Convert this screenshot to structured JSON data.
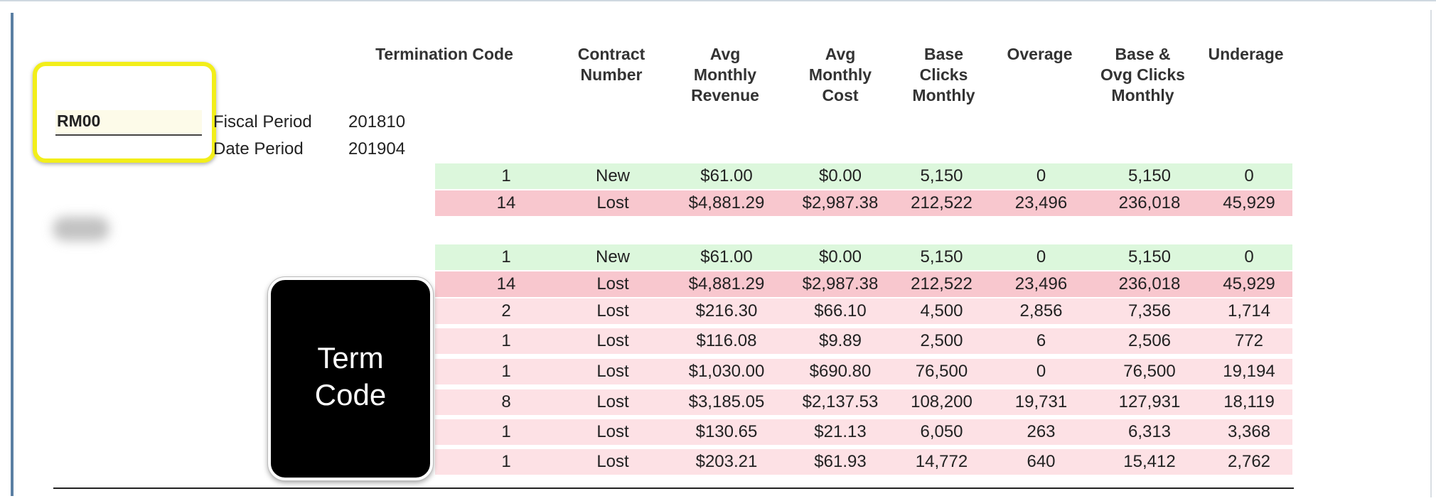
{
  "headers": {
    "termination_code": "Termination Code",
    "contract_number": [
      "Contract",
      "Number"
    ],
    "avg_monthly_revenue": [
      "Avg",
      "Monthly",
      "Revenue"
    ],
    "avg_monthly_cost": [
      "Avg",
      "Monthly",
      "Cost"
    ],
    "base_clicks_monthly": [
      "Base",
      "Clicks",
      "Monthly"
    ],
    "overage": "Overage",
    "base_ovg_clicks_monthly": [
      "Base &",
      "Ovg Clicks",
      "Monthly"
    ],
    "underage": "Underage"
  },
  "filter": {
    "rm_value": "RM00",
    "fiscal_period_label": "Fiscal Period",
    "fiscal_period_value": "201810",
    "date_period_label": "Date Period",
    "date_period_value": "201904"
  },
  "callout": {
    "line1": "Term",
    "line2": "Code"
  },
  "rows": [
    {
      "code": "1",
      "status": "New",
      "revenue": "$61.00",
      "cost": "$0.00",
      "base": "5,150",
      "overage": "0",
      "base_ovg": "5,150",
      "underage": "0",
      "color": "green"
    },
    {
      "code": "14",
      "status": "Lost",
      "revenue": "$4,881.29",
      "cost": "$2,987.38",
      "base": "212,522",
      "overage": "23,496",
      "base_ovg": "236,018",
      "underage": "45,929",
      "color": "red"
    },
    {
      "code": "1",
      "status": "New",
      "revenue": "$61.00",
      "cost": "$0.00",
      "base": "5,150",
      "overage": "0",
      "base_ovg": "5,150",
      "underage": "0",
      "color": "green"
    },
    {
      "code": "14",
      "status": "Lost",
      "revenue": "$4,881.29",
      "cost": "$2,987.38",
      "base": "212,522",
      "overage": "23,496",
      "base_ovg": "236,018",
      "underage": "45,929",
      "color": "red"
    },
    {
      "code": "2",
      "status": "Lost",
      "revenue": "$216.30",
      "cost": "$66.10",
      "base": "4,500",
      "overage": "2,856",
      "base_ovg": "7,356",
      "underage": "1,714",
      "color": "pink"
    },
    {
      "code": "1",
      "status": "Lost",
      "revenue": "$116.08",
      "cost": "$9.89",
      "base": "2,500",
      "overage": "6",
      "base_ovg": "2,506",
      "underage": "772",
      "color": "pink"
    },
    {
      "code": "1",
      "status": "Lost",
      "revenue": "$1,030.00",
      "cost": "$690.80",
      "base": "76,500",
      "overage": "0",
      "base_ovg": "76,500",
      "underage": "19,194",
      "color": "pink"
    },
    {
      "code": "8",
      "status": "Lost",
      "revenue": "$3,185.05",
      "cost": "$2,137.53",
      "base": "108,200",
      "overage": "19,731",
      "base_ovg": "127,931",
      "underage": "18,119",
      "color": "pink"
    },
    {
      "code": "1",
      "status": "Lost",
      "revenue": "$130.65",
      "cost": "$21.13",
      "base": "6,050",
      "overage": "263",
      "base_ovg": "6,313",
      "underage": "3,368",
      "color": "pink"
    },
    {
      "code": "1",
      "status": "Lost",
      "revenue": "$203.21",
      "cost": "$61.93",
      "base": "14,772",
      "overage": "640",
      "base_ovg": "15,412",
      "underage": "2,762",
      "color": "pink"
    }
  ]
}
